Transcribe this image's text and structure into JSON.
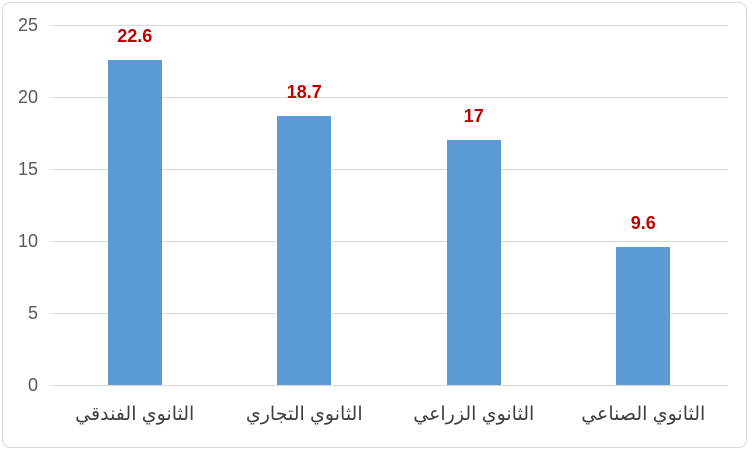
{
  "chart_data": {
    "type": "bar",
    "categories": [
      "الثانوي الفندقي",
      "الثانوي التجاري",
      "الثانوي الزراعي",
      "الثانوي الصناعي"
    ],
    "values": [
      22.6,
      18.7,
      17,
      9.6
    ],
    "data_labels": [
      "22.6",
      "18.7",
      "17",
      "9.6"
    ],
    "title": "",
    "xlabel": "",
    "ylabel": "",
    "ylim": [
      0,
      25
    ],
    "yticks": [
      0,
      5,
      10,
      15,
      20,
      25
    ],
    "grid": true,
    "legend": false,
    "colors": {
      "bar": "#5B9BD5",
      "data_label": "#C00000",
      "tick_label": "#595959",
      "category_label": "#3F3F3F",
      "gridline": "#D9D9D9",
      "chart_border": "#D9D9D9",
      "background": "#FFFFFF"
    }
  }
}
